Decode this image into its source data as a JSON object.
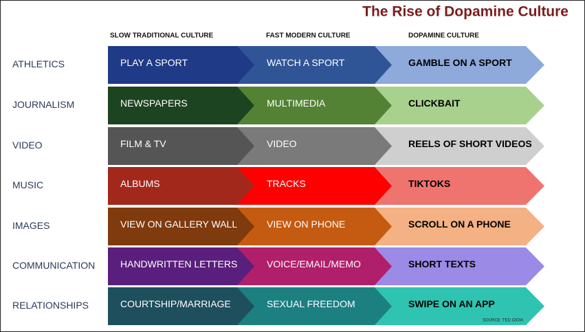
{
  "title": "The Rise of Dopamine Culture",
  "columns": [
    "SLOW TRADITIONAL CULTURE",
    "FAST MODERN CULTURE",
    "DOPAMINE CULTURE"
  ],
  "rows": [
    {
      "label": "ATHLETICS",
      "cells": [
        "PLAY A SPORT",
        "WATCH A SPORT",
        "GAMBLE ON A SPORT"
      ]
    },
    {
      "label": "JOURNALISM",
      "cells": [
        "NEWSPAPERS",
        "MULTIMEDIA",
        "CLICKBAIT"
      ]
    },
    {
      "label": "VIDEO",
      "cells": [
        "FILM &  TV",
        "VIDEO",
        "REELS OF SHORT VIDEOS"
      ]
    },
    {
      "label": "MUSIC",
      "cells": [
        "ALBUMS",
        "TRACKS",
        "TIKTOKS"
      ]
    },
    {
      "label": "IMAGES",
      "cells": [
        "VIEW ON GALLERY WALL",
        "VIEW ON PHONE",
        "SCROLL ON A PHONE"
      ]
    },
    {
      "label": "COMMUNICATION",
      "cells": [
        "HANDWRITTEN LETTERS",
        "VOICE/EMAIL/MEMO",
        "SHORT TEXTS"
      ]
    },
    {
      "label": "RELATIONSHIPS",
      "cells": [
        "COURTSHIP/MARRIAGE",
        "SEXUAL FREEDOM",
        "SWIPE ON AN APP"
      ]
    }
  ],
  "source": "SOURCE: TED GIOIA"
}
